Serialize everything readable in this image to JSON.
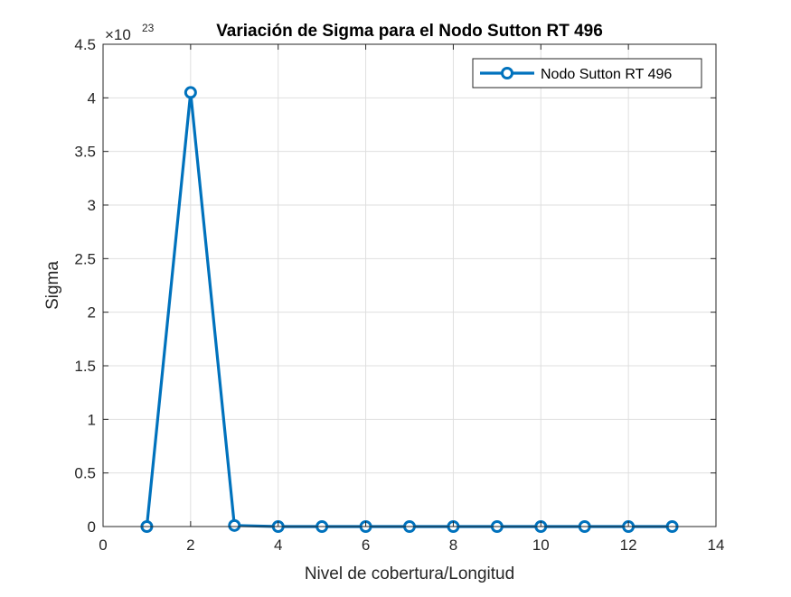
{
  "chart_data": {
    "type": "line",
    "title": "Variación de Sigma para el Nodo Sutton RT 496",
    "xlabel": "Nivel de cobertura/Longitud",
    "ylabel": "Sigma",
    "exponent_base": "×10",
    "exponent_power": "23",
    "xlim": [
      0,
      14
    ],
    "ylim": [
      0,
      4.5
    ],
    "x_ticks": [
      0,
      2,
      4,
      6,
      8,
      10,
      12,
      14
    ],
    "y_ticks": [
      0,
      0.5,
      1,
      1.5,
      2,
      2.5,
      3,
      3.5,
      4,
      4.5
    ],
    "grid": true,
    "legend_location": "top-right",
    "series": [
      {
        "name": "Nodo Sutton RT 496",
        "color": "#0072BD",
        "marker": "circle",
        "x": [
          1,
          2,
          3,
          4,
          5,
          6,
          7,
          8,
          9,
          10,
          11,
          12,
          13
        ],
        "y": [
          0,
          4.05,
          0.01,
          0,
          0,
          0,
          0,
          0,
          0,
          0,
          0,
          0,
          0
        ]
      }
    ]
  }
}
